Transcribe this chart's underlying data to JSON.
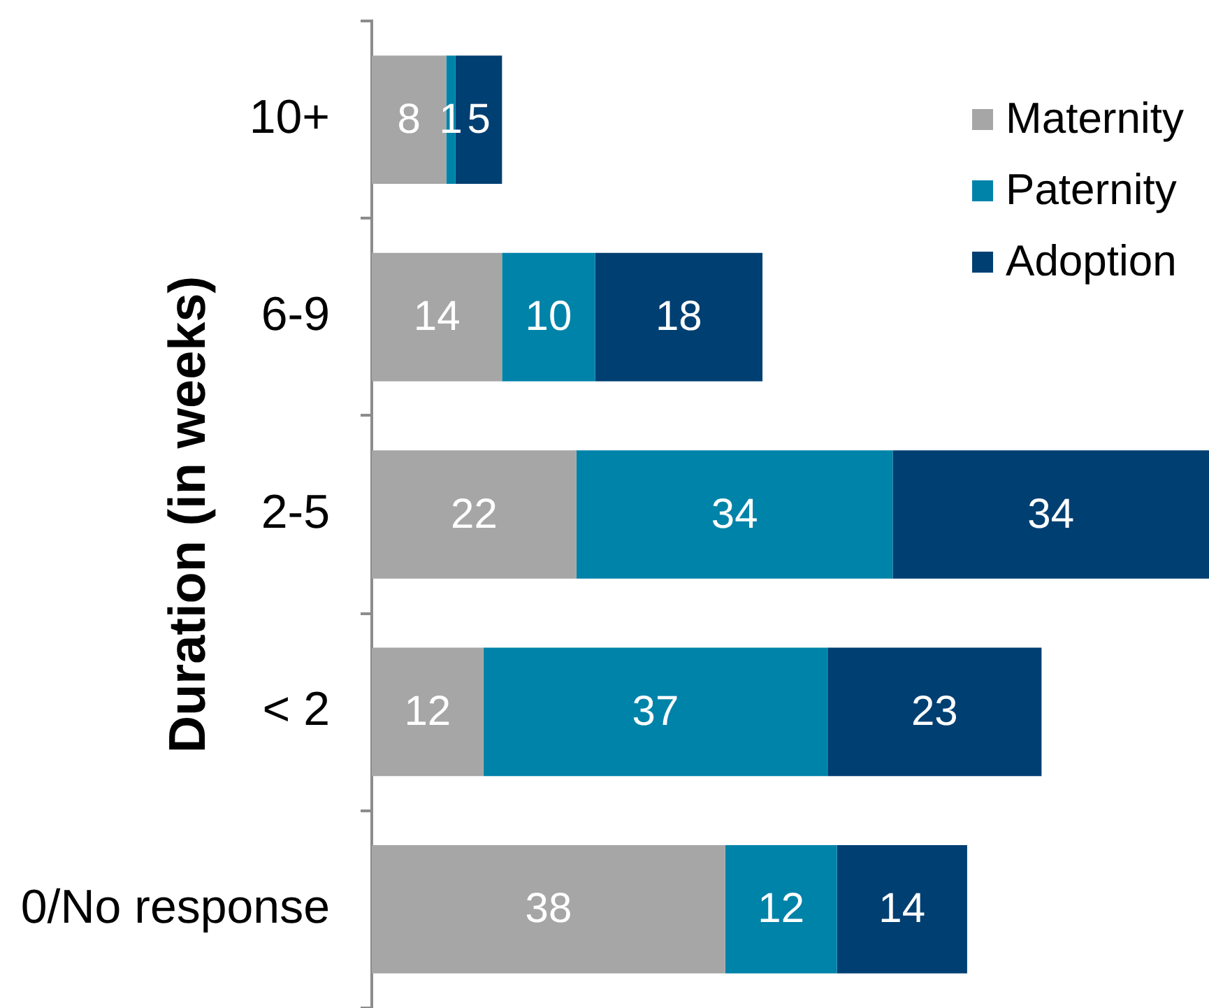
{
  "chart_data": {
    "type": "bar",
    "orientation": "horizontal",
    "stacked": true,
    "ylabel": "Duration (in weeks)",
    "categories": [
      "10+",
      "6-9",
      "2-5",
      "< 2",
      "0/No response"
    ],
    "series": [
      {
        "name": "Maternity",
        "color": "#a6a6a6",
        "values": [
          8,
          14,
          22,
          12,
          38
        ]
      },
      {
        "name": "Paternity",
        "color": "#0083a9",
        "values": [
          1,
          10,
          34,
          37,
          12
        ]
      },
      {
        "name": "Adoption",
        "color": "#003f72",
        "values": [
          5,
          18,
          34,
          23,
          14
        ]
      }
    ],
    "xlim": [
      0,
      90
    ],
    "data_labels": true,
    "legend": "top right",
    "tick_labels": "y"
  }
}
